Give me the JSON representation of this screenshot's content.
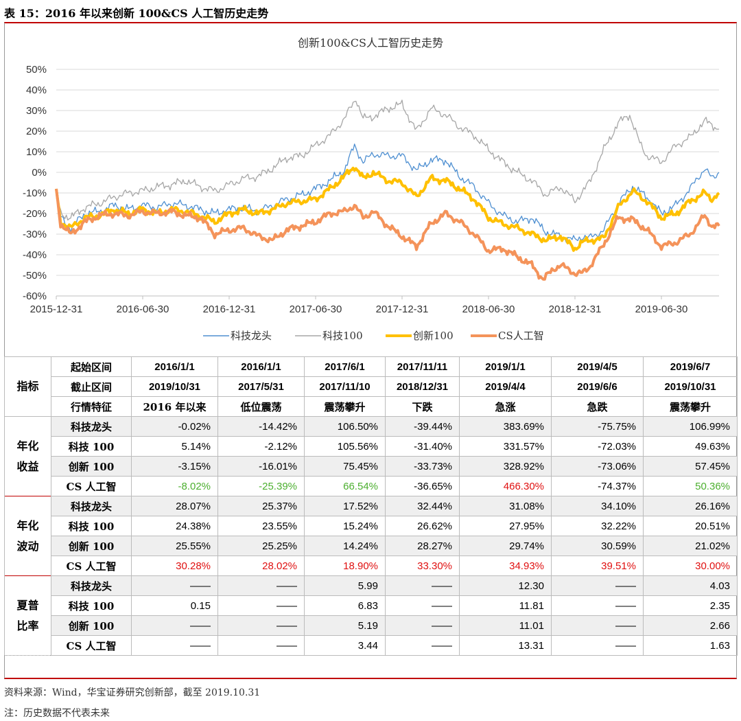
{
  "heading": "表 15：2016 年以来创新 100&CS 人工智历史走势",
  "chart_data": {
    "type": "line",
    "title": "创新100&CS人工智历史走势",
    "ylim": [
      -60,
      50
    ],
    "yticks": [
      "50%",
      "40%",
      "30%",
      "20%",
      "10%",
      "0%",
      "-10%",
      "-20%",
      "-30%",
      "-40%",
      "-50%",
      "-60%"
    ],
    "xticks": [
      "2015-12-31",
      "2016-06-30",
      "2016-12-31",
      "2017-06-30",
      "2017-12-31",
      "2018-06-30",
      "2018-12-31",
      "2019-06-30"
    ],
    "x_range_months": [
      0,
      46
    ],
    "series": [
      {
        "name": "科技龙头",
        "color": "#4e8fd1",
        "width": 1.3,
        "points": [
          [
            0,
            -8
          ],
          [
            0.3,
            -22
          ],
          [
            1,
            -27
          ],
          [
            2,
            -20
          ],
          [
            3,
            -19
          ],
          [
            4,
            -16
          ],
          [
            5,
            -18
          ],
          [
            6,
            -16
          ],
          [
            7,
            -17
          ],
          [
            8,
            -15
          ],
          [
            9,
            -16
          ],
          [
            10,
            -18
          ],
          [
            11,
            -20
          ],
          [
            12,
            -18
          ],
          [
            13,
            -17
          ],
          [
            14,
            -19
          ],
          [
            15,
            -16
          ],
          [
            16,
            -13
          ],
          [
            17,
            -11
          ],
          [
            18,
            -8
          ],
          [
            19,
            -4
          ],
          [
            20,
            1
          ],
          [
            20.7,
            13
          ],
          [
            21.3,
            5
          ],
          [
            22,
            9
          ],
          [
            23,
            8
          ],
          [
            24,
            8
          ],
          [
            25,
            1
          ],
          [
            26,
            6
          ],
          [
            27,
            6
          ],
          [
            28,
            -2
          ],
          [
            29,
            -7
          ],
          [
            30,
            -15
          ],
          [
            31,
            -21
          ],
          [
            32,
            -24
          ],
          [
            33,
            -22
          ],
          [
            34,
            -29
          ],
          [
            35,
            -31
          ],
          [
            36,
            -33
          ],
          [
            36.5,
            -31
          ],
          [
            37,
            -32
          ],
          [
            38,
            -28
          ],
          [
            39,
            -15
          ],
          [
            40,
            -7
          ],
          [
            41,
            -12
          ],
          [
            42,
            -20
          ],
          [
            43,
            -16
          ],
          [
            44,
            -8
          ],
          [
            45,
            2
          ],
          [
            45.5,
            -3
          ],
          [
            46,
            0
          ]
        ]
      },
      {
        "name": "科技100",
        "color": "#a6a6a6",
        "width": 1.3,
        "points": [
          [
            0,
            -8
          ],
          [
            0.3,
            -20
          ],
          [
            1,
            -22
          ],
          [
            2,
            -17
          ],
          [
            3,
            -15
          ],
          [
            4,
            -12
          ],
          [
            5,
            -10
          ],
          [
            6,
            -9
          ],
          [
            7,
            -7
          ],
          [
            8,
            -6
          ],
          [
            9,
            -4
          ],
          [
            10,
            -7
          ],
          [
            11,
            -9
          ],
          [
            12,
            -6
          ],
          [
            13,
            -3
          ],
          [
            14,
            -2
          ],
          [
            15,
            2
          ],
          [
            16,
            7
          ],
          [
            17,
            8
          ],
          [
            18,
            13
          ],
          [
            19,
            18
          ],
          [
            20,
            26
          ],
          [
            20.8,
            36
          ],
          [
            21.3,
            26
          ],
          [
            22,
            27
          ],
          [
            23,
            31
          ],
          [
            24,
            33
          ],
          [
            25,
            20
          ],
          [
            26,
            31
          ],
          [
            27,
            28
          ],
          [
            28,
            22
          ],
          [
            29,
            18
          ],
          [
            30,
            11
          ],
          [
            31,
            5
          ],
          [
            32,
            0
          ],
          [
            33,
            -4
          ],
          [
            34,
            -11
          ],
          [
            35,
            -7
          ],
          [
            36,
            -14
          ],
          [
            37,
            -5
          ],
          [
            38,
            11
          ],
          [
            39,
            24
          ],
          [
            39.8,
            28
          ],
          [
            40.5,
            14
          ],
          [
            41,
            8
          ],
          [
            42,
            5
          ],
          [
            43,
            13
          ],
          [
            44,
            17
          ],
          [
            45,
            25
          ],
          [
            46,
            21
          ]
        ]
      },
      {
        "name": "创新100",
        "color": "#ffc000",
        "width": 4,
        "points": [
          [
            0,
            -8
          ],
          [
            0.3,
            -24
          ],
          [
            1,
            -27
          ],
          [
            2,
            -22
          ],
          [
            3,
            -21
          ],
          [
            4,
            -18
          ],
          [
            5,
            -20
          ],
          [
            6,
            -18
          ],
          [
            7,
            -20
          ],
          [
            8,
            -18
          ],
          [
            9,
            -19
          ],
          [
            10,
            -21
          ],
          [
            11,
            -24
          ],
          [
            12,
            -20
          ],
          [
            13,
            -18
          ],
          [
            14,
            -20
          ],
          [
            15,
            -18
          ],
          [
            16,
            -15
          ],
          [
            17,
            -14
          ],
          [
            18,
            -13
          ],
          [
            19,
            -8
          ],
          [
            20,
            -2
          ],
          [
            20.7,
            3
          ],
          [
            21.3,
            -3
          ],
          [
            22,
            0
          ],
          [
            23,
            -4
          ],
          [
            24,
            -5
          ],
          [
            25,
            -12
          ],
          [
            26,
            -3
          ],
          [
            27,
            -4
          ],
          [
            28,
            -8
          ],
          [
            29,
            -13
          ],
          [
            30,
            -22
          ],
          [
            31,
            -25
          ],
          [
            32,
            -27
          ],
          [
            33,
            -30
          ],
          [
            34,
            -33
          ],
          [
            35,
            -31
          ],
          [
            36,
            -37
          ],
          [
            36.5,
            -34
          ],
          [
            37,
            -33
          ],
          [
            38,
            -32
          ],
          [
            39,
            -17
          ],
          [
            40,
            -9
          ],
          [
            41,
            -14
          ],
          [
            42,
            -22
          ],
          [
            43,
            -20
          ],
          [
            44,
            -14
          ],
          [
            45,
            -10
          ],
          [
            45.5,
            -13
          ],
          [
            46,
            -10
          ]
        ]
      },
      {
        "name": "CS人工智",
        "color": "#f4935a",
        "width": 4,
        "points": [
          [
            0,
            -8
          ],
          [
            0.3,
            -25
          ],
          [
            1,
            -30
          ],
          [
            2,
            -24
          ],
          [
            3,
            -21
          ],
          [
            4,
            -20
          ],
          [
            5,
            -21
          ],
          [
            6,
            -19
          ],
          [
            7,
            -20
          ],
          [
            8,
            -19
          ],
          [
            9,
            -21
          ],
          [
            10,
            -22
          ],
          [
            11,
            -30
          ],
          [
            12,
            -28
          ],
          [
            13,
            -27
          ],
          [
            14,
            -31
          ],
          [
            15,
            -33
          ],
          [
            16,
            -28
          ],
          [
            17,
            -26
          ],
          [
            18,
            -24
          ],
          [
            19,
            -20
          ],
          [
            20,
            -19
          ],
          [
            20.7,
            -16
          ],
          [
            21.3,
            -22
          ],
          [
            22,
            -19
          ],
          [
            23,
            -26
          ],
          [
            24,
            -31
          ],
          [
            25,
            -36
          ],
          [
            26,
            -25
          ],
          [
            27,
            -20
          ],
          [
            28,
            -24
          ],
          [
            29,
            -30
          ],
          [
            30,
            -38
          ],
          [
            31,
            -37
          ],
          [
            32,
            -41
          ],
          [
            33,
            -45
          ],
          [
            33.8,
            -52
          ],
          [
            34.5,
            -47
          ],
          [
            35,
            -45
          ],
          [
            36,
            -49
          ],
          [
            36.5,
            -49
          ],
          [
            37,
            -46
          ],
          [
            38,
            -35
          ],
          [
            39,
            -22
          ],
          [
            40,
            -23
          ],
          [
            41,
            -28
          ],
          [
            42,
            -36
          ],
          [
            43,
            -34
          ],
          [
            44,
            -30
          ],
          [
            45,
            -21
          ],
          [
            45.5,
            -26
          ],
          [
            46,
            -26
          ]
        ]
      }
    ]
  },
  "table": {
    "header": {
      "group_label": "指标",
      "row_labels": [
        "起始区间",
        "截止区间",
        "行情特征"
      ],
      "starts": [
        "2016/1/1",
        "2016/1/1",
        "2017/6/1",
        "2017/11/11",
        "2019/1/1",
        "2019/4/5",
        "2019/6/7"
      ],
      "ends": [
        "2019/10/31",
        "2017/5/31",
        "2017/11/10",
        "2018/12/31",
        "2019/4/4",
        "2019/6/6",
        "2019/10/31"
      ],
      "features": [
        "2016 年以来",
        "低位震荡",
        "震荡攀升",
        "下跌",
        "急涨",
        "急跌",
        "震荡攀升"
      ]
    },
    "sections": [
      {
        "group": "年化收益",
        "rows": [
          {
            "label": "科技龙头",
            "shade": true,
            "values": [
              "-0.02%",
              "-14.42%",
              "106.50%",
              "-39.44%",
              "383.69%",
              "-75.75%",
              "106.99%"
            ],
            "colors": [
              "",
              "",
              "",
              "",
              "",
              "",
              ""
            ]
          },
          {
            "label": "科技 100",
            "shade": false,
            "values": [
              "5.14%",
              "-2.12%",
              "105.56%",
              "-31.40%",
              "331.57%",
              "-72.03%",
              "49.63%"
            ],
            "colors": [
              "",
              "",
              "",
              "",
              "",
              "",
              ""
            ]
          },
          {
            "label": "创新 100",
            "shade": true,
            "values": [
              "-3.15%",
              "-16.01%",
              "75.45%",
              "-33.73%",
              "328.92%",
              "-73.06%",
              "57.45%"
            ],
            "colors": [
              "",
              "",
              "",
              "",
              "",
              "",
              ""
            ]
          },
          {
            "label": "CS 人工智",
            "shade": false,
            "values": [
              "-8.02%",
              "-25.39%",
              "66.54%",
              "-36.65%",
              "466.30%",
              "-74.37%",
              "50.36%"
            ],
            "colors": [
              "green",
              "green",
              "green",
              "",
              "red",
              "",
              "green"
            ]
          }
        ]
      },
      {
        "group": "年化波动",
        "rows": [
          {
            "label": "科技龙头",
            "shade": true,
            "values": [
              "28.07%",
              "25.37%",
              "17.52%",
              "32.44%",
              "31.08%",
              "34.10%",
              "26.16%"
            ],
            "colors": [
              "",
              "",
              "",
              "",
              "",
              "",
              ""
            ]
          },
          {
            "label": "科技 100",
            "shade": false,
            "values": [
              "24.38%",
              "23.55%",
              "15.24%",
              "26.62%",
              "27.95%",
              "32.22%",
              "20.51%"
            ],
            "colors": [
              "",
              "",
              "",
              "",
              "",
              "",
              ""
            ]
          },
          {
            "label": "创新 100",
            "shade": true,
            "values": [
              "25.55%",
              "25.25%",
              "14.24%",
              "28.27%",
              "29.74%",
              "30.59%",
              "21.02%"
            ],
            "colors": [
              "",
              "",
              "",
              "",
              "",
              "",
              ""
            ]
          },
          {
            "label": "CS 人工智",
            "shade": false,
            "values": [
              "30.28%",
              "28.02%",
              "18.90%",
              "33.30%",
              "34.93%",
              "39.51%",
              "30.00%"
            ],
            "colors": [
              "red",
              "red",
              "red",
              "red",
              "red",
              "red",
              "red"
            ]
          }
        ]
      },
      {
        "group": "夏普比率",
        "rows": [
          {
            "label": "科技龙头",
            "shade": true,
            "values": [
              "——",
              "——",
              "5.99",
              "——",
              "12.30",
              "——",
              "4.03"
            ],
            "colors": [
              "",
              "",
              "",
              "",
              "",
              "",
              ""
            ]
          },
          {
            "label": "科技 100",
            "shade": false,
            "values": [
              "0.15",
              "——",
              "6.83",
              "——",
              "11.81",
              "——",
              "2.35"
            ],
            "colors": [
              "",
              "",
              "",
              "",
              "",
              "",
              ""
            ]
          },
          {
            "label": "创新 100",
            "shade": true,
            "values": [
              "——",
              "——",
              "5.19",
              "——",
              "11.01",
              "——",
              "2.66"
            ],
            "colors": [
              "",
              "",
              "",
              "",
              "",
              "",
              ""
            ]
          },
          {
            "label": "CS 人工智",
            "shade": false,
            "values": [
              "——",
              "——",
              "3.44",
              "——",
              "13.31",
              "——",
              "1.63"
            ],
            "colors": [
              "",
              "",
              "",
              "",
              "",
              "",
              ""
            ]
          }
        ]
      }
    ]
  },
  "source_note": "资料来源：Wind，华宝证券研究创新部，截至 2019.10.31",
  "disclaimer": "注：历史数据不代表未来"
}
